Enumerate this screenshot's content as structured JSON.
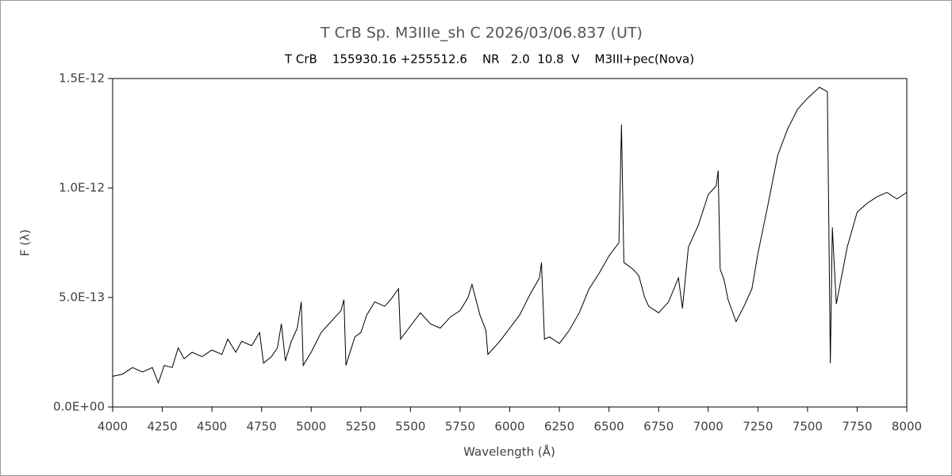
{
  "chart_data": {
    "type": "line",
    "title": "T CrB    Sp. M3IIIe_sh C    2026/03/06.837 (UT)",
    "subtitle": "T CrB    155930.16 +255512.6    NR   2.0  10.8  V    M3III+pec(Nova)",
    "x_label": "Wavelength (Å)",
    "y_label": "F (λ)",
    "xlim": [
      4000,
      8000
    ],
    "xticks": [
      4000,
      4250,
      4500,
      4750,
      5000,
      5250,
      5500,
      5750,
      6000,
      6250,
      6500,
      6750,
      7000,
      7250,
      7500,
      7750,
      8000
    ],
    "ylim": [
      0,
      1.5e-12
    ],
    "yticks": [
      {
        "value": 0,
        "label": "0.0E+00"
      },
      {
        "value": 5e-13,
        "label": "5.0E-13"
      },
      {
        "value": 1e-12,
        "label": "1.0E-12"
      },
      {
        "value": 1.5e-12,
        "label": "1.5E-12"
      }
    ],
    "x": [
      4000,
      4050,
      4100,
      4150,
      4200,
      4230,
      4260,
      4300,
      4330,
      4360,
      4400,
      4450,
      4500,
      4550,
      4580,
      4620,
      4650,
      4700,
      4740,
      4760,
      4800,
      4830,
      4850,
      4870,
      4900,
      4930,
      4950,
      4960,
      5000,
      5050,
      5100,
      5150,
      5165,
      5175,
      5220,
      5250,
      5280,
      5320,
      5370,
      5400,
      5440,
      5450,
      5500,
      5550,
      5600,
      5650,
      5700,
      5750,
      5790,
      5810,
      5850,
      5880,
      5890,
      5950,
      6000,
      6050,
      6100,
      6150,
      6160,
      6175,
      6200,
      6250,
      6300,
      6350,
      6400,
      6450,
      6500,
      6550,
      6563,
      6575,
      6620,
      6650,
      6680,
      6700,
      6750,
      6800,
      6850,
      6870,
      6900,
      6950,
      7000,
      7040,
      7050,
      7060,
      7080,
      7100,
      7140,
      7180,
      7220,
      7250,
      7300,
      7350,
      7400,
      7450,
      7500,
      7560,
      7600,
      7615,
      7625,
      7645,
      7700,
      7750,
      7800,
      7850,
      7900,
      7950,
      8000
    ],
    "series": [
      {
        "name": "T CrB",
        "color": "#000000",
        "values": [
          1.4e-13,
          1.5e-13,
          1.8e-13,
          1.6e-13,
          1.8e-13,
          1.1e-13,
          1.9e-13,
          1.8e-13,
          2.7e-13,
          2.2e-13,
          2.5e-13,
          2.3e-13,
          2.6e-13,
          2.4e-13,
          3.1e-13,
          2.5e-13,
          3e-13,
          2.8e-13,
          3.4e-13,
          2e-13,
          2.3e-13,
          2.7e-13,
          3.8e-13,
          2.1e-13,
          3e-13,
          3.6e-13,
          4.8e-13,
          1.9e-13,
          2.5e-13,
          3.4e-13,
          3.9e-13,
          4.4e-13,
          4.9e-13,
          1.9e-13,
          3.2e-13,
          3.4e-13,
          4.2e-13,
          4.8e-13,
          4.6e-13,
          4.9e-13,
          5.4e-13,
          3.1e-13,
          3.7e-13,
          4.3e-13,
          3.8e-13,
          3.6e-13,
          4.1e-13,
          4.4e-13,
          5e-13,
          5.6e-13,
          4.2e-13,
          3.5e-13,
          2.4e-13,
          3e-13,
          3.6e-13,
          4.2e-13,
          5.1e-13,
          5.9e-13,
          6.6e-13,
          3.1e-13,
          3.2e-13,
          2.9e-13,
          3.5e-13,
          4.3e-13,
          5.4e-13,
          6.1e-13,
          6.9e-13,
          7.5e-13,
          1.29e-12,
          6.6e-13,
          6.3e-13,
          6e-13,
          5e-13,
          4.6e-13,
          4.3e-13,
          4.8e-13,
          5.9e-13,
          4.5e-13,
          7.3e-13,
          8.3e-13,
          9.7e-13,
          1.01e-12,
          1.08e-12,
          6.3e-13,
          5.8e-13,
          4.9e-13,
          3.9e-13,
          4.6e-13,
          5.4e-13,
          7e-13,
          9.2e-13,
          1.15e-12,
          1.27e-12,
          1.36e-12,
          1.41e-12,
          1.46e-12,
          1.44e-12,
          2e-13,
          8.2e-13,
          4.7e-13,
          7.3e-13,
          8.9e-13,
          9.3e-13,
          9.6e-13,
          9.8e-13,
          9.5e-13,
          9.8e-13
        ]
      }
    ]
  }
}
